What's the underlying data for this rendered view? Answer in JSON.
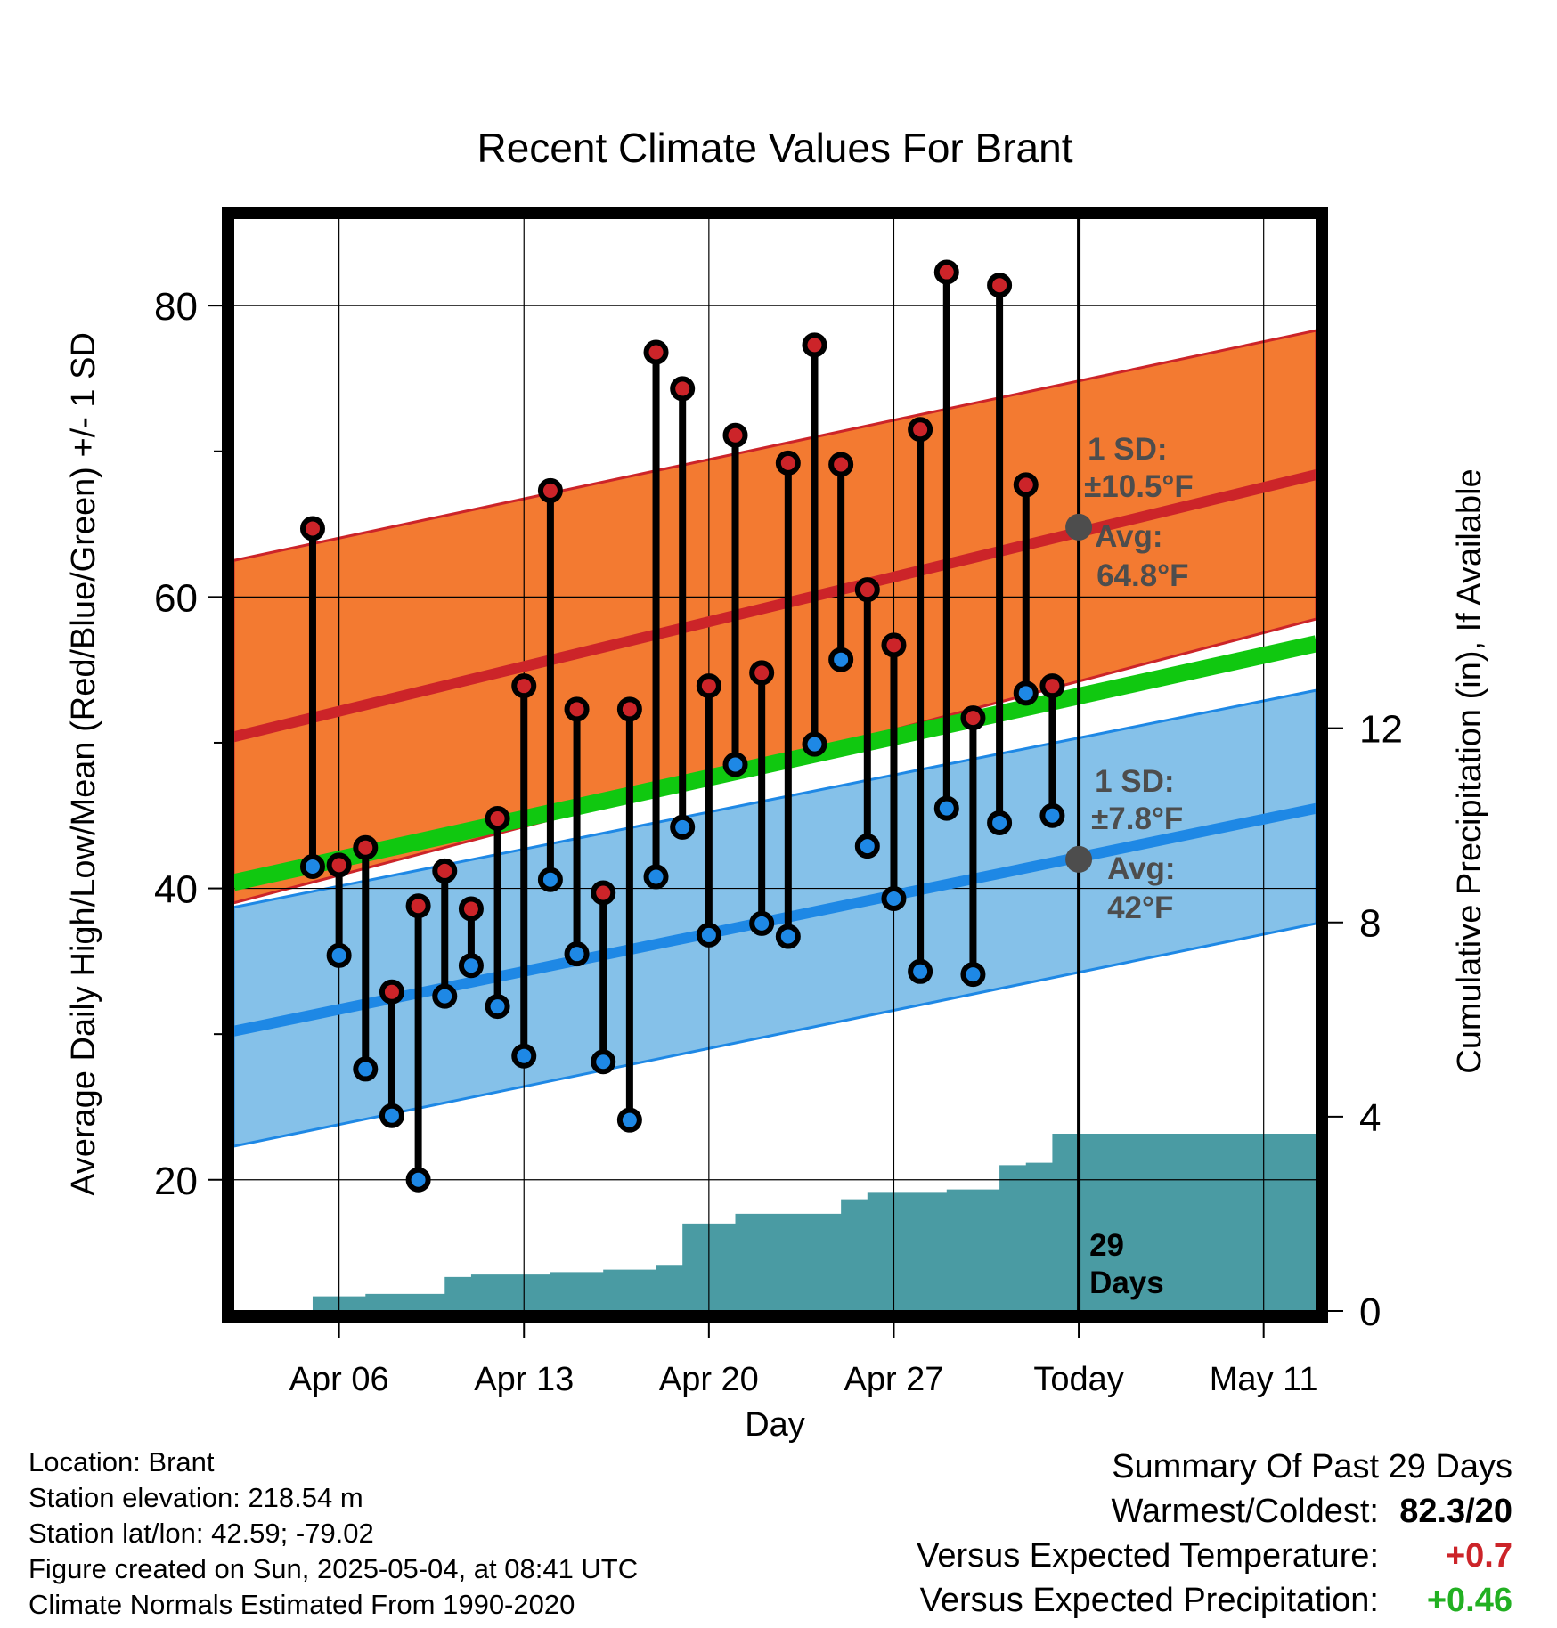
{
  "chart_data": {
    "type": "line",
    "title": "Recent Climate Values For Brant",
    "xlabel": "Day",
    "ylabel": "Average Daily High/Low/Mean (Red/Blue/Green) +/- 1 SD",
    "y2label": "Cumulative Precipitation (in), If Available",
    "x_tick_labels": [
      "Apr 06",
      "Apr 13",
      "Apr 20",
      "Apr 27",
      "Today",
      "May 11"
    ],
    "x_tick_days": [
      "2025-04-06",
      "2025-04-13",
      "2025-04-20",
      "2025-04-27",
      "2025-05-04",
      "2025-05-11"
    ],
    "xlim": [
      "2025-04-02",
      "2025-05-13"
    ],
    "ylim": [
      11,
      86
    ],
    "y_ticks": [
      20,
      40,
      60,
      80
    ],
    "y2lim": [
      0,
      22.5
    ],
    "y2_ticks": [
      0,
      4,
      8,
      12
    ],
    "grid": true,
    "today": "2025-05-04",
    "days": [
      "2025-04-05",
      "2025-04-06",
      "2025-04-07",
      "2025-04-08",
      "2025-04-09",
      "2025-04-10",
      "2025-04-11",
      "2025-04-12",
      "2025-04-13",
      "2025-04-14",
      "2025-04-15",
      "2025-04-16",
      "2025-04-17",
      "2025-04-18",
      "2025-04-19",
      "2025-04-20",
      "2025-04-21",
      "2025-04-22",
      "2025-04-23",
      "2025-04-24",
      "2025-04-25",
      "2025-04-26",
      "2025-04-27",
      "2025-04-28",
      "2025-04-29",
      "2025-04-30",
      "2025-05-01",
      "2025-05-02",
      "2025-05-03"
    ],
    "highs": [
      64.7,
      41.6,
      42.8,
      32.9,
      38.8,
      41.2,
      38.6,
      44.8,
      53.9,
      67.3,
      52.3,
      39.7,
      52.3,
      76.8,
      74.3,
      53.9,
      71.1,
      54.8,
      69.2,
      77.3,
      69.1,
      60.5,
      56.7,
      71.5,
      82.3,
      51.7,
      81.4,
      67.7,
      53.9
    ],
    "lows": [
      41.5,
      35.4,
      27.6,
      24.4,
      20.0,
      32.6,
      34.7,
      31.9,
      28.5,
      40.6,
      35.5,
      28.1,
      24.1,
      40.8,
      44.2,
      36.8,
      48.5,
      37.6,
      36.7,
      49.9,
      55.7,
      42.9,
      39.3,
      34.3,
      45.5,
      34.1,
      44.5,
      53.4,
      45.0
    ],
    "normal_high_mean": [
      50.4,
      68.4
    ],
    "normal_high_sd_band": [
      [
        39.0,
        62.5
      ],
      [
        58.5,
        78.3
      ]
    ],
    "normal_mean": [
      40.4,
      56.8
    ],
    "normal_low_mean": [
      30.2,
      45.5
    ],
    "normal_low_sd_band": [
      [
        22.3,
        38.7
      ],
      [
        37.6,
        53.6
      ]
    ],
    "normal_range_days": [
      "2025-04-02",
      "2025-05-13"
    ],
    "precip_cumulative": [
      0.0,
      0.3,
      0.3,
      0.35,
      0.35,
      0.35,
      0.7,
      0.75,
      0.75,
      0.75,
      0.8,
      0.8,
      0.85,
      0.85,
      0.95,
      1.8,
      1.8,
      2.0,
      2.0,
      2.0,
      2.0,
      2.3,
      2.45,
      2.45,
      2.45,
      2.5,
      2.5,
      3.0,
      3.05,
      3.65,
      3.65
    ],
    "precip_days": [
      "2025-04-04",
      "2025-04-05",
      "2025-04-06",
      "2025-04-07",
      "2025-04-08",
      "2025-04-09",
      "2025-04-10",
      "2025-04-11",
      "2025-04-12",
      "2025-04-13",
      "2025-04-14",
      "2025-04-15",
      "2025-04-16",
      "2025-04-17",
      "2025-04-18",
      "2025-04-19",
      "2025-04-20",
      "2025-04-21",
      "2025-04-22",
      "2025-04-23",
      "2025-04-24",
      "2025-04-25",
      "2025-04-26",
      "2025-04-27",
      "2025-04-28",
      "2025-04-29",
      "2025-04-30",
      "2025-05-01",
      "2025-05-02",
      "2025-05-03",
      "2025-05-13"
    ],
    "annotations": {
      "high_sd_label": "1 SD:",
      "high_sd_value": "±10.5°F",
      "high_avg_label": "Avg:",
      "high_avg_value": "64.8°F",
      "high_avg": 64.8,
      "low_sd_label": "1 SD:",
      "low_sd_value": "±7.8°F",
      "low_avg_label": "Avg:",
      "low_avg_value": "42°F",
      "low_avg": 42.0,
      "days_label_1": "29",
      "days_label_2": "Days"
    },
    "colors": {
      "high_band": "#f37a31",
      "high_line": "#cc2429",
      "low_band": "#85c1e9",
      "low_line": "#1e88e5",
      "mean_line": "#10c810",
      "precip": "#4a9ba3",
      "high_dot": "#cc2429",
      "low_dot": "#1e88e5",
      "annotation": "#4d4d4d"
    }
  },
  "info": {
    "location": "Location: Brant",
    "elevation": "Station elevation: 218.54 m",
    "latlon": "Station lat/lon: 42.59; -79.02",
    "created": "Figure created on Sun, 2025-05-04, at 08:41 UTC",
    "normals": "Climate Normals Estimated From 1990-2020"
  },
  "summary": {
    "heading": "Summary Of Past 29 Days",
    "warm_cold_label": "Warmest/Coldest:",
    "warm_cold_value": "82.3/20",
    "temp_label": "Versus Expected Temperature:",
    "temp_value": "+0.7",
    "temp_color": "#cc2429",
    "precip_label": "Versus Expected Precipitation:",
    "precip_value": "+0.46",
    "precip_color": "#22b022"
  }
}
